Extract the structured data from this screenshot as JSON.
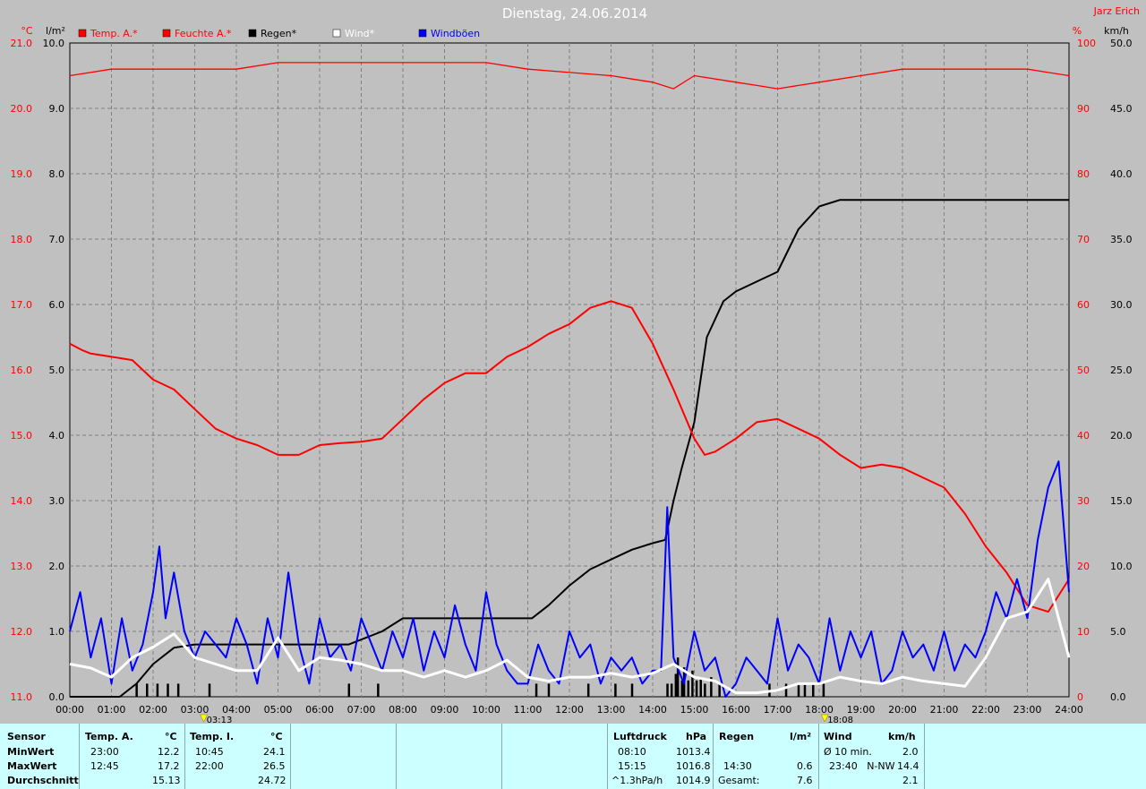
{
  "header": {
    "title": "Dienstag, 24.06.2014",
    "author": "Jarz Erich"
  },
  "units": {
    "temp": "°C",
    "rain": "l/m²",
    "hum": "%",
    "wind": "km/h"
  },
  "legend": [
    {
      "label": "Temp. A.*",
      "color": "#ff0000"
    },
    {
      "label": "Feuchte A.*",
      "color": "#ff0000"
    },
    {
      "label": "Regen*",
      "color": "#000000"
    },
    {
      "label": "Wind*",
      "color": "#ffffff"
    },
    {
      "label": "Windböen",
      "color": "#0000ff"
    }
  ],
  "markers": [
    "03:13",
    "18:08"
  ],
  "colors": {
    "background": "#c0c0c0",
    "panel": "#ccffff",
    "temp": "#ff0000",
    "hum": "#ff0000",
    "rain": "#000000",
    "wind": "#ffffff",
    "gust": "#0000ff"
  },
  "chart_data": {
    "type": "line",
    "x_ticks": [
      "00:00",
      "01:00",
      "02:00",
      "03:00",
      "04:00",
      "05:00",
      "06:00",
      "07:00",
      "08:00",
      "09:00",
      "10:00",
      "11:00",
      "12:00",
      "13:00",
      "14:00",
      "15:00",
      "16:00",
      "17:00",
      "18:00",
      "19:00",
      "20:00",
      "21:00",
      "22:00",
      "23:00",
      "24:00"
    ],
    "axes": {
      "temp": {
        "range": [
          11,
          21
        ],
        "ticks": [
          "21.0",
          "20.0",
          "19.0",
          "18.0",
          "17.0",
          "16.0",
          "15.0",
          "14.0",
          "13.0",
          "12.0",
          "11.0"
        ]
      },
      "rain": {
        "range": [
          0,
          10
        ],
        "ticks": [
          "10.0",
          "9.0",
          "8.0",
          "7.0",
          "6.0",
          "5.0",
          "4.0",
          "3.0",
          "2.0",
          "1.0",
          "0.0"
        ]
      },
      "hum": {
        "range": [
          0,
          100
        ],
        "ticks": [
          "100",
          "90",
          "80",
          "70",
          "60",
          "50",
          "40",
          "30",
          "20",
          "10",
          "0"
        ]
      },
      "wind": {
        "range": [
          0,
          50
        ],
        "ticks": [
          "50.0",
          "45.0",
          "40.0",
          "35.0",
          "30.0",
          "25.0",
          "20.0",
          "15.0",
          "10.0",
          "5.0",
          "0.0"
        ]
      }
    },
    "series": [
      {
        "name": "Temp. A.*",
        "axis": "temp",
        "x": [
          0,
          0.3,
          0.5,
          1,
          1.5,
          2,
          2.5,
          3,
          3.5,
          4,
          4.5,
          5,
          5.5,
          6,
          6.5,
          7,
          7.5,
          8,
          8.5,
          9,
          9.5,
          10,
          10.5,
          11,
          11.5,
          12,
          12.5,
          13,
          13.5,
          14,
          14.5,
          15,
          15.25,
          15.5,
          16,
          16.5,
          17,
          17.5,
          18,
          18.5,
          19,
          19.5,
          20,
          20.5,
          21,
          21.5,
          22,
          22.5,
          23,
          23.5,
          24
        ],
        "y": [
          16.4,
          16.3,
          16.25,
          16.2,
          16.15,
          15.85,
          15.7,
          15.4,
          15.1,
          14.95,
          14.85,
          14.7,
          14.7,
          14.85,
          14.88,
          14.9,
          14.95,
          15.25,
          15.55,
          15.8,
          15.95,
          15.95,
          16.2,
          16.35,
          16.55,
          16.7,
          16.95,
          17.05,
          16.95,
          16.4,
          15.7,
          14.95,
          14.7,
          14.75,
          14.95,
          15.2,
          15.25,
          15.1,
          14.95,
          14.7,
          14.5,
          14.55,
          14.5,
          14.35,
          14.2,
          13.8,
          13.3,
          12.9,
          12.4,
          12.3,
          12.8
        ]
      },
      {
        "name": "Feuchte A.*",
        "axis": "hum",
        "x": [
          0,
          1,
          2,
          3,
          4,
          5,
          6,
          7,
          8,
          9,
          10,
          11,
          12,
          13,
          13.5,
          14,
          14.5,
          15,
          16,
          16.5,
          17,
          17.5,
          18,
          19,
          20,
          21,
          22,
          23,
          23.5,
          24
        ],
        "y": [
          95,
          96,
          96,
          96,
          96,
          97,
          97,
          97,
          97,
          97,
          97,
          96,
          95.5,
          95,
          94.5,
          94,
          93,
          95,
          94,
          93.5,
          93,
          93.5,
          94,
          95,
          96,
          96,
          96,
          96,
          95.5,
          95
        ]
      },
      {
        "name": "Regen*",
        "axis": "rain",
        "x": [
          0,
          1.2,
          1.6,
          2,
          2.5,
          3,
          4,
          5,
          6,
          6.7,
          7.5,
          8,
          9,
          10,
          11.1,
          11.5,
          12,
          12.5,
          13,
          13.5,
          14,
          14.3,
          14.5,
          14.7,
          15,
          15.3,
          15.7,
          16,
          16.5,
          17,
          17.5,
          18,
          18.5,
          19,
          20,
          21,
          22,
          23,
          24
        ],
        "y": [
          0,
          0,
          0.2,
          0.5,
          0.75,
          0.8,
          0.8,
          0.8,
          0.8,
          0.8,
          1,
          1.2,
          1.2,
          1.2,
          1.2,
          1.4,
          1.7,
          1.95,
          2.1,
          2.25,
          2.35,
          2.4,
          3,
          3.5,
          4.2,
          5.5,
          6.05,
          6.2,
          6.35,
          6.5,
          7.15,
          7.5,
          7.6,
          7.6,
          7.6,
          7.6,
          7.6,
          7.6,
          7.6
        ]
      },
      {
        "name": "Wind*",
        "axis": "wind",
        "x": [
          0,
          0.5,
          1,
          1.5,
          2,
          2.5,
          3,
          3.5,
          4,
          4.5,
          5,
          5.5,
          6,
          6.5,
          7,
          7.5,
          8,
          8.5,
          9,
          9.5,
          10,
          10.5,
          11,
          11.5,
          12,
          12.5,
          13,
          13.5,
          14,
          14.5,
          15,
          15.5,
          16,
          16.5,
          17,
          17.5,
          18,
          18.5,
          19,
          19.5,
          20,
          20.5,
          21,
          21.5,
          22,
          22.5,
          23,
          23.5,
          24
        ],
        "y": [
          2.5,
          2.2,
          1.5,
          3,
          3.8,
          4.8,
          3,
          2.5,
          2,
          2,
          4.5,
          2,
          3,
          2.8,
          2.5,
          2,
          2,
          1.5,
          2,
          1.5,
          2,
          2.8,
          1.5,
          1.2,
          1.5,
          1.5,
          1.8,
          1.5,
          1.8,
          2.5,
          1.5,
          1.2,
          0.3,
          0.3,
          0.5,
          1,
          1,
          1.5,
          1.2,
          1,
          1.5,
          1.2,
          1,
          0.8,
          3,
          6,
          6.5,
          9,
          3
        ]
      },
      {
        "name": "Windböen",
        "axis": "wind",
        "x": [
          0,
          0.25,
          0.5,
          0.75,
          1,
          1.25,
          1.5,
          1.75,
          2,
          2.15,
          2.3,
          2.5,
          2.75,
          3,
          3.25,
          3.5,
          3.75,
          4,
          4.25,
          4.5,
          4.75,
          5,
          5.25,
          5.5,
          5.75,
          6,
          6.25,
          6.5,
          6.75,
          7,
          7.25,
          7.5,
          7.75,
          8,
          8.25,
          8.5,
          8.75,
          9,
          9.25,
          9.5,
          9.75,
          10,
          10.25,
          10.5,
          10.75,
          11,
          11.25,
          11.5,
          11.75,
          12,
          12.25,
          12.5,
          12.75,
          13,
          13.25,
          13.5,
          13.75,
          14,
          14.2,
          14.35,
          14.5,
          14.75,
          15,
          15.25,
          15.5,
          15.75,
          16,
          16.25,
          16.5,
          16.75,
          17,
          17.25,
          17.5,
          17.75,
          18,
          18.25,
          18.5,
          18.75,
          19,
          19.25,
          19.5,
          19.75,
          20,
          20.25,
          20.5,
          20.75,
          21,
          21.25,
          21.5,
          21.75,
          22,
          22.25,
          22.5,
          22.75,
          23,
          23.25,
          23.5,
          23.75,
          24
        ],
        "y": [
          5,
          8,
          3,
          6,
          1,
          6,
          2,
          4,
          8,
          11.5,
          6,
          9.5,
          5,
          3,
          5,
          4,
          3,
          6,
          4,
          1,
          6,
          3,
          9.5,
          4,
          1,
          6,
          3,
          4,
          2,
          6,
          4,
          2,
          5,
          3,
          6,
          2,
          5,
          3,
          7,
          4,
          2,
          8,
          4,
          2,
          1,
          1,
          4,
          2,
          1,
          5,
          3,
          4,
          1,
          3,
          2,
          3,
          1,
          2,
          2,
          14.5,
          3,
          1,
          5,
          2,
          3,
          0,
          1,
          3,
          2,
          1,
          6,
          2,
          4,
          3,
          1,
          6,
          2,
          5,
          3,
          5,
          1,
          2,
          5,
          3,
          4,
          2,
          5,
          2,
          4,
          3,
          5,
          8,
          6,
          9,
          6,
          12,
          16,
          18,
          8
        ]
      }
    ],
    "rain_bars": {
      "axis": "rain",
      "x": [
        1.6,
        1.85,
        2.1,
        2.35,
        2.6,
        3.35,
        6.7,
        7.4,
        11.2,
        11.5,
        12.45,
        13.1,
        13.5,
        14.35,
        14.45,
        14.55,
        14.6,
        14.7,
        14.75,
        14.85,
        14.95,
        15.05,
        15.15,
        15.25,
        15.4,
        15.6,
        16.8,
        17.2,
        17.5,
        17.65,
        17.85,
        18.1
      ],
      "y": [
        0.2,
        0.2,
        0.2,
        0.2,
        0.2,
        0.2,
        0.2,
        0.2,
        0.2,
        0.2,
        0.2,
        0.2,
        0.2,
        0.2,
        0.2,
        0.35,
        0.6,
        0.25,
        0.45,
        0.25,
        0.4,
        0.25,
        0.3,
        0.2,
        0.3,
        0.2,
        0.2,
        0.2,
        0.2,
        0.2,
        0.2,
        0.2
      ]
    }
  },
  "stats": {
    "row_labels": [
      "Sensor",
      "MinWert",
      "MaxWert",
      "Durchschnitt"
    ],
    "temp_a": {
      "header": "Temp. A.",
      "unit": "°C",
      "rows": [
        [
          "23:00",
          "12.2"
        ],
        [
          "12:45",
          "17.2"
        ],
        [
          "",
          "15.13"
        ]
      ]
    },
    "temp_i": {
      "header": "Temp. I.",
      "unit": "°C",
      "rows": [
        [
          "10:45",
          "24.1"
        ],
        [
          "22:00",
          "26.5"
        ],
        [
          "",
          "24.72"
        ]
      ]
    },
    "pressure": {
      "header": "Luftdruck",
      "unit": "hPa",
      "rows": [
        [
          "08:10",
          "1013.4"
        ],
        [
          "15:15",
          "1016.8"
        ],
        [
          "^1.3hPa/h",
          "1014.9"
        ]
      ]
    },
    "rain": {
      "header": "Regen",
      "unit": "l/m²",
      "rows": [
        [
          "",
          ""
        ],
        [
          "14:30",
          "0.6"
        ],
        [
          "Gesamt:",
          "7.6"
        ]
      ]
    },
    "wind": {
      "header": "Wind",
      "unit": "km/h",
      "rows": [
        [
          "Ø 10 min.",
          "2.0"
        ],
        [
          "23:40   N-NW",
          "14.4"
        ],
        [
          "",
          "2.1"
        ]
      ]
    }
  }
}
